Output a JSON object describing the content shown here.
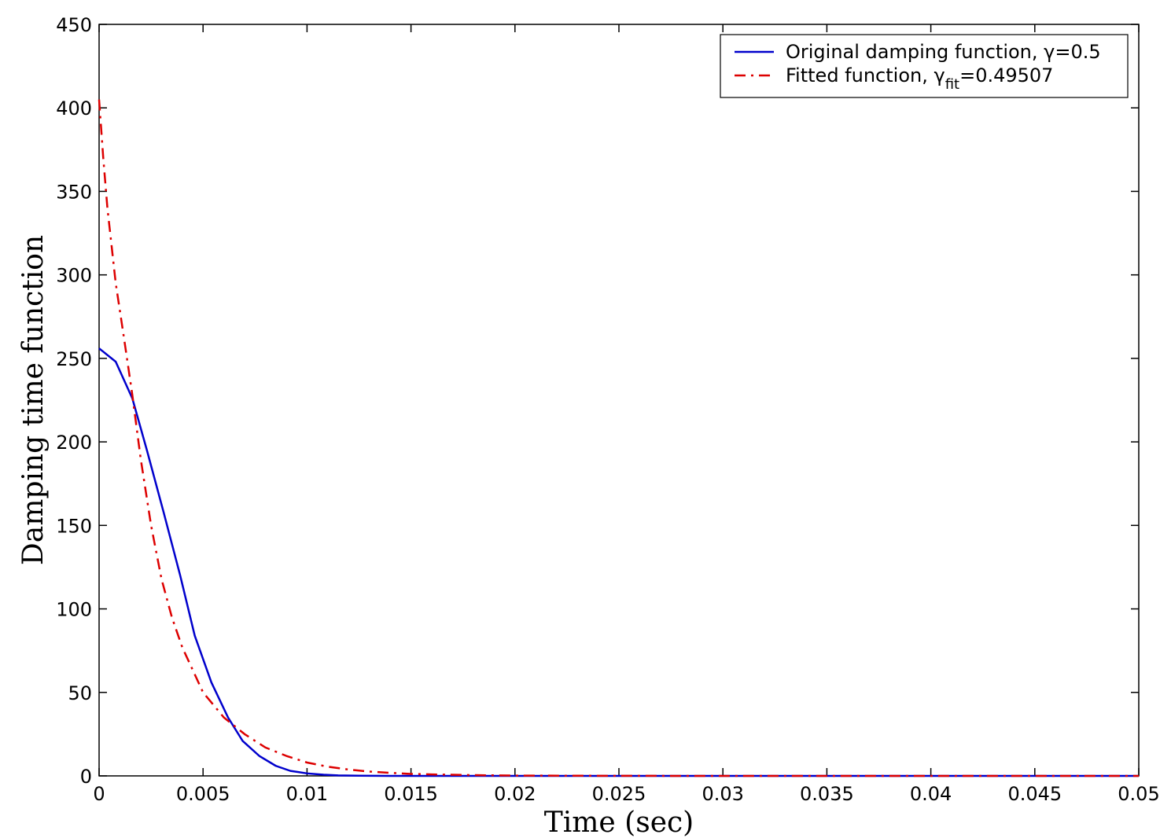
{
  "chart_data": {
    "type": "line",
    "xlabel": "Time  (sec)",
    "ylabel": "Damping time function",
    "xlim": [
      0,
      0.05
    ],
    "ylim": [
      0,
      450
    ],
    "x_ticks": [
      "0",
      "0.005",
      "0.01",
      "0.015",
      "0.02",
      "0.025",
      "0.03",
      "0.035",
      "0.04",
      "0.045",
      "0.05"
    ],
    "y_ticks": [
      "0",
      "50",
      "100",
      "150",
      "200",
      "250",
      "300",
      "350",
      "400",
      "450"
    ],
    "grid": false,
    "legend_position": "top-right",
    "series": [
      {
        "name": "Original damping function, γ=0.5",
        "name_parts": {
          "pre": "Original damping function, ",
          "sym": "γ",
          "sub": "",
          "post": "=0.5"
        },
        "color": "#0000cc",
        "style": "solid",
        "x": [
          0,
          0.0008,
          0.0016,
          0.0023,
          0.0031,
          0.0039,
          0.0046,
          0.0054,
          0.0062,
          0.0069,
          0.0077,
          0.0085,
          0.0092,
          0.01,
          0.0108,
          0.0115,
          0.0125,
          0.014,
          0.016,
          0.02,
          0.03,
          0.04,
          0.05
        ],
        "y": [
          256,
          248,
          226,
          195,
          158,
          120,
          84,
          56,
          35,
          21,
          12,
          6,
          3,
          1.5,
          0.7,
          0.3,
          0.1,
          0,
          0,
          0,
          0,
          0,
          0
        ]
      },
      {
        "name": "Fitted function, γfit=0.49507",
        "name_parts": {
          "pre": "Fitted function, ",
          "sym": "γ",
          "sub": "fit",
          "post": "=0.49507"
        },
        "color": "#dd0000",
        "style": "dashdot",
        "x": [
          0,
          0.0002,
          0.0004,
          0.0008,
          0.0012,
          0.0016,
          0.002,
          0.0025,
          0.003,
          0.0035,
          0.004,
          0.005,
          0.006,
          0.007,
          0.008,
          0.009,
          0.01,
          0.011,
          0.012,
          0.013,
          0.014,
          0.015,
          0.016,
          0.018,
          0.02,
          0.025,
          0.03,
          0.04,
          0.05
        ],
        "y": [
          405,
          370,
          340,
          295,
          262,
          228,
          190,
          150,
          118,
          95,
          77,
          50,
          35,
          25,
          17,
          12,
          8,
          5.5,
          3.8,
          2.6,
          1.8,
          1.2,
          0.9,
          0.45,
          0.2,
          0.05,
          0,
          0,
          0
        ]
      }
    ]
  }
}
